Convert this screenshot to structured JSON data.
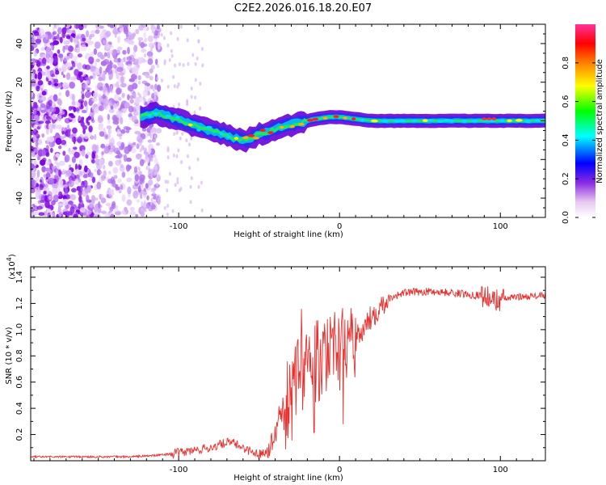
{
  "title": "C2E2.2026.016.18.20.E07",
  "chart_data": [
    {
      "type": "heatmap",
      "xlabel": "Height of straight line (km)",
      "ylabel": "Frequency (Hz)",
      "xlim": [
        -192,
        128
      ],
      "ylim": [
        -50,
        50
      ],
      "xticks": [
        -100,
        0,
        100
      ],
      "xtick_labels": [
        "-100",
        "0",
        "100"
      ],
      "yticks": [
        -40,
        -20,
        0,
        20,
        40
      ],
      "ytick_labels": [
        "-40",
        "-20",
        "0",
        "20",
        "40"
      ],
      "colorbar": {
        "label": "Normalized spectral amplitude",
        "range": [
          0,
          1
        ],
        "ticks": [
          0.0,
          0.2,
          0.4,
          0.6,
          0.8
        ],
        "tick_labels": [
          "0.0",
          "0.2",
          "0.4",
          "0.6",
          "0.8"
        ],
        "colors": [
          "#ffffff",
          "#e8c8f0",
          "#8a2be2",
          "#0000ff",
          "#00ffff",
          "#00ff00",
          "#ffff00",
          "#ff8000",
          "#ff0000",
          "#ff3399"
        ]
      },
      "ridge": {
        "x": [
          -124,
          -115,
          -105,
          -95,
          -85,
          -75,
          -65,
          -58,
          -50,
          -42,
          -35,
          -25,
          -15,
          -5,
          0,
          10,
          20,
          40,
          60,
          80,
          100,
          128
        ],
        "freq_hz": [
          2,
          4,
          2,
          -1,
          -4,
          -6,
          -9,
          -10,
          -7,
          -5,
          -3,
          -1,
          1,
          2,
          2,
          1,
          0,
          0,
          0,
          0,
          0,
          0
        ]
      }
    },
    {
      "type": "line",
      "xlabel": "Height of straight line (km)",
      "ylabel": "SNR (10 * v/v)",
      "y_multiplier_label": "(x10",
      "y_multiplier_exp": "4",
      "xlim": [
        -192,
        128
      ],
      "ylim": [
        0,
        1.48
      ],
      "xticks": [
        -100,
        0,
        100
      ],
      "xtick_labels": [
        "-100",
        "0",
        "100"
      ],
      "yticks": [
        0.2,
        0.4,
        0.6,
        0.8,
        1.0,
        1.2,
        1.4
      ],
      "ytick_labels": [
        "0.2",
        "0.4",
        "0.6",
        "0.8",
        "1.0",
        "1.2",
        "1.4"
      ],
      "color": "#e8302e",
      "series": [
        {
          "name": "SNR",
          "x": [
            -192,
            -170,
            -150,
            -130,
            -115,
            -100,
            -90,
            -80,
            -75,
            -70,
            -65,
            -60,
            -55,
            -50,
            -45,
            -40,
            -35,
            -30,
            -25,
            -20,
            -15,
            -10,
            -5,
            0,
            5,
            10,
            15,
            20,
            25,
            30,
            40,
            50,
            60,
            70,
            80,
            90,
            95,
            100,
            110,
            128
          ],
          "y": [
            0.03,
            0.03,
            0.03,
            0.03,
            0.04,
            0.06,
            0.08,
            0.1,
            0.12,
            0.14,
            0.13,
            0.1,
            0.07,
            0.05,
            0.08,
            0.2,
            0.4,
            0.55,
            0.62,
            0.72,
            0.75,
            0.78,
            0.8,
            0.85,
            0.88,
            0.92,
            1.0,
            1.1,
            1.18,
            1.24,
            1.28,
            1.29,
            1.29,
            1.28,
            1.27,
            1.26,
            1.22,
            1.23,
            1.25,
            1.26
          ]
        }
      ]
    }
  ]
}
